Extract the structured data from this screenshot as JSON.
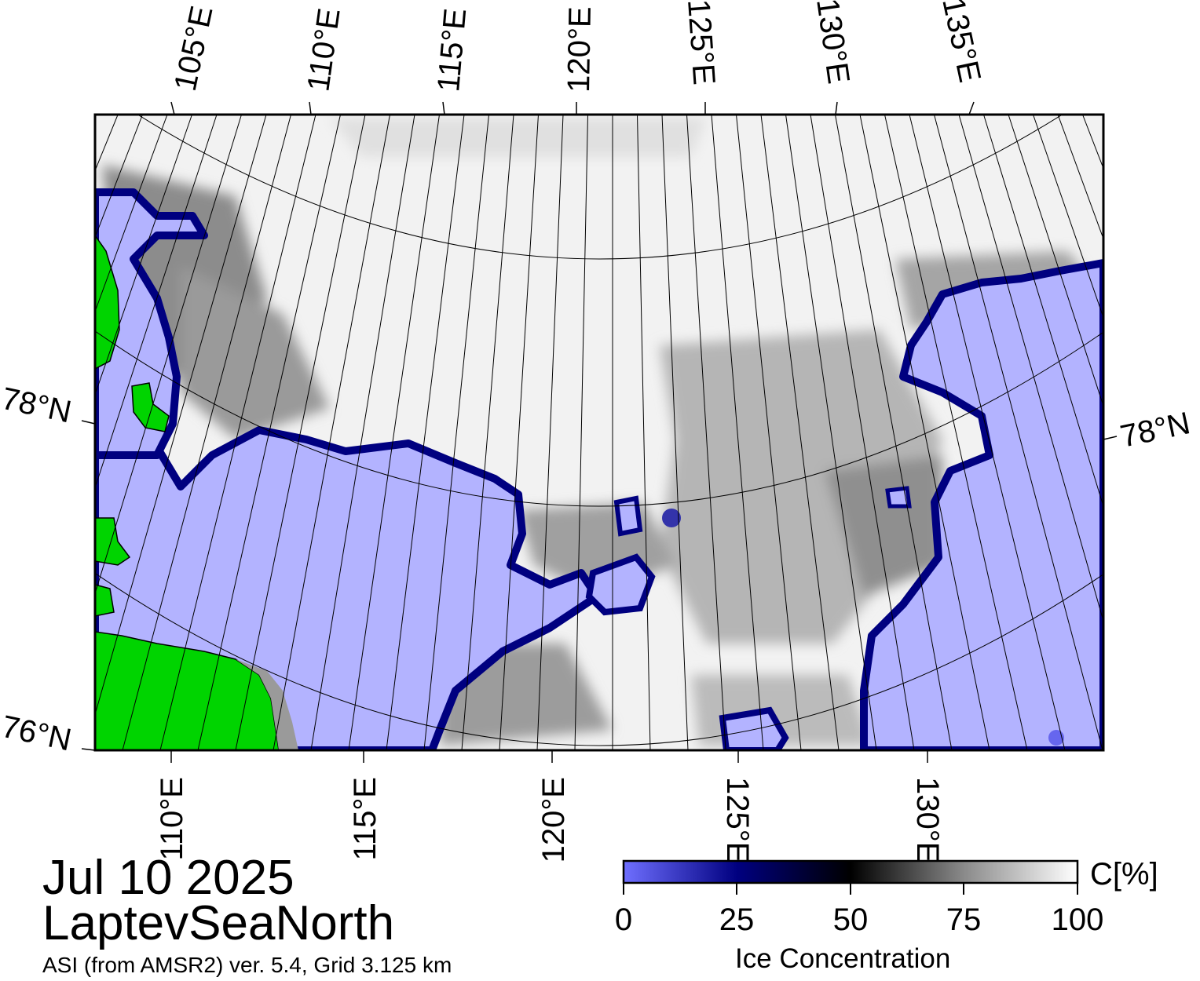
{
  "map": {
    "date": "Jul 10 2025",
    "region": "LaptevSeaNorth",
    "product": "ASI (from AMSR2) ver. 5.4,  Grid 3.125 km",
    "top_lon_labels": [
      "105°E",
      "110°E",
      "115°E",
      "120°E",
      "125°E",
      "130°E",
      "135°E"
    ],
    "bottom_lon_labels": [
      "110°E",
      "115°E",
      "120°E",
      "125°E",
      "130°E"
    ],
    "left_lat_labels": [
      "78°N",
      "76°N"
    ],
    "right_lat_labels": [
      "78°N"
    ],
    "colors": {
      "open_water": "#b3b3ff",
      "land": "#00d400",
      "ice_high": "#ffffff",
      "ice_mid": "#7a7a7a",
      "ice_edge": "#000080",
      "grid": "#000000"
    }
  },
  "colorbar": {
    "title": "Ice Concentration",
    "unit": "C[%]",
    "ticks": [
      "0",
      "25",
      "50",
      "75",
      "100"
    ],
    "stops": [
      {
        "value": 0,
        "color": "#6f6fff"
      },
      {
        "value": 25,
        "color": "#000080"
      },
      {
        "value": 50,
        "color": "#000000"
      },
      {
        "value": 75,
        "color": "#8a8a8a"
      },
      {
        "value": 100,
        "color": "#ffffff"
      }
    ]
  }
}
